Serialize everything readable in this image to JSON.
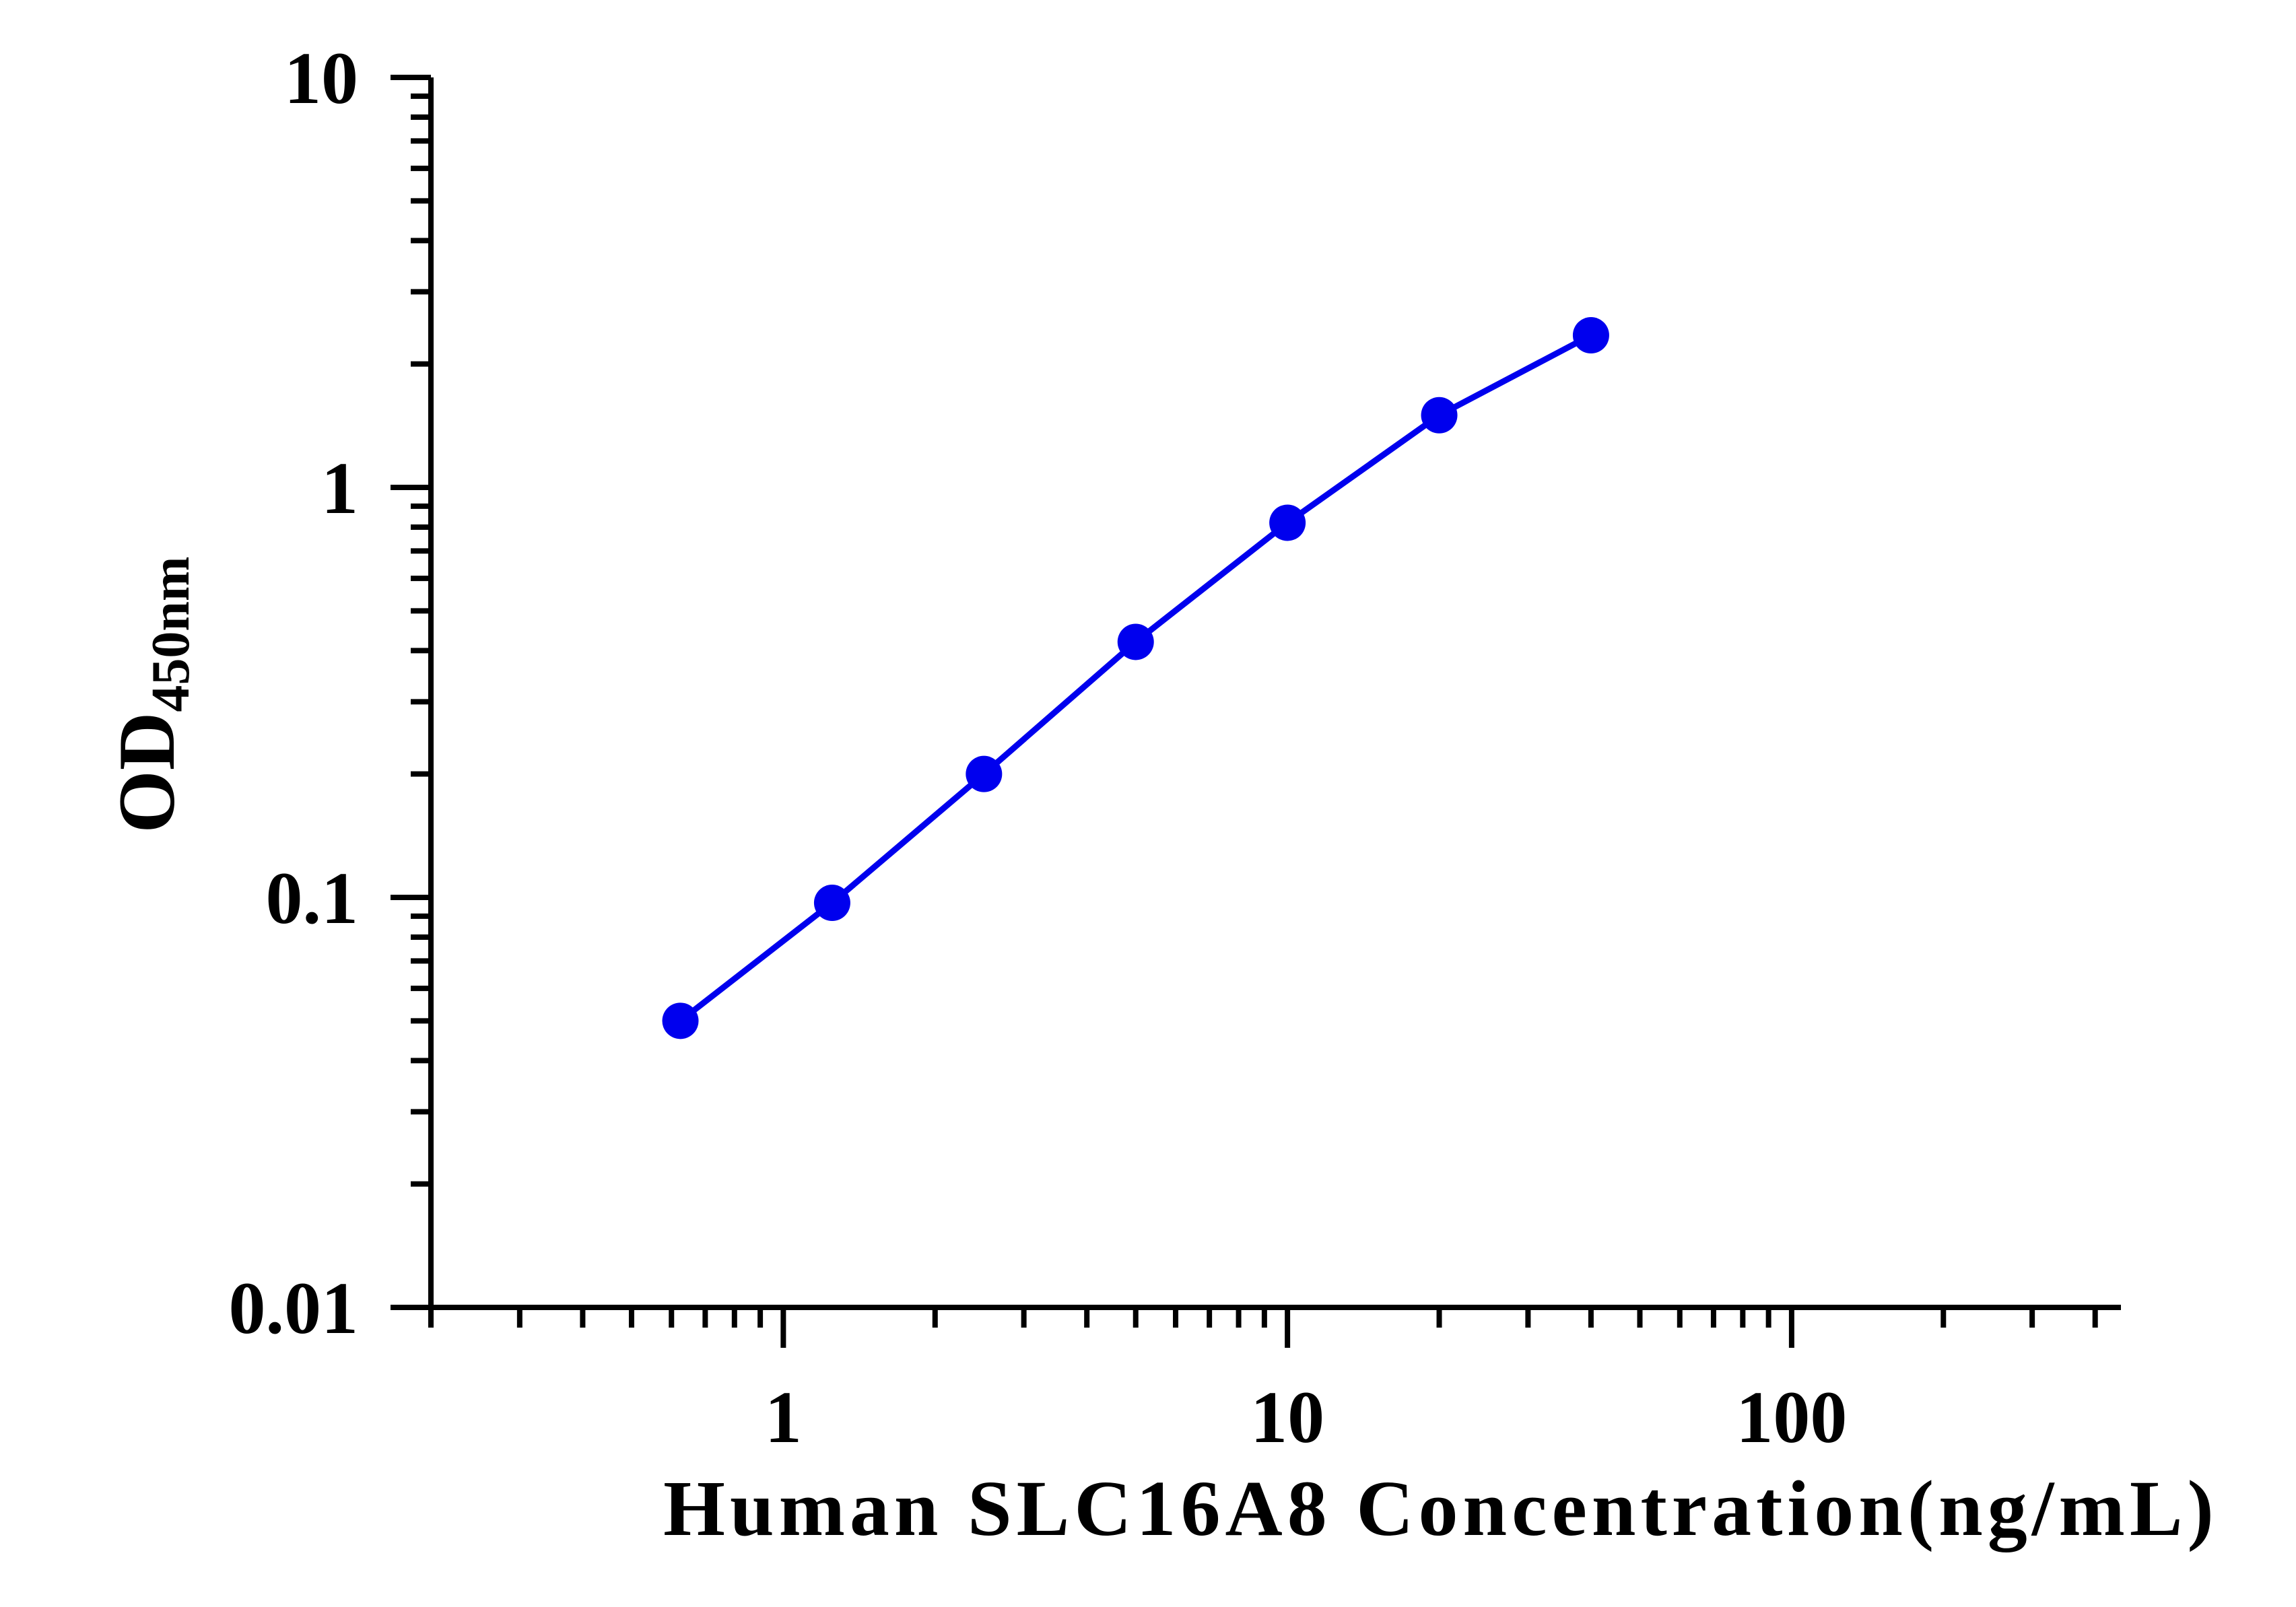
{
  "chart_data": {
    "type": "line",
    "title": "",
    "xlabel": "Human SLC16A8 Concentration(ng/mL)",
    "ylabel": {
      "main": "OD",
      "subscript": "450nm"
    },
    "x_scale": "log",
    "y_scale": "log",
    "xlim": [
      0.2,
      450
    ],
    "ylim": [
      0.01,
      10
    ],
    "x_ticks": [
      1,
      10,
      100
    ],
    "x_tick_labels": [
      "1",
      "10",
      "100"
    ],
    "y_ticks": [
      0.01,
      0.1,
      1,
      10
    ],
    "y_tick_labels": [
      "0.01",
      "0.1",
      "1",
      "10"
    ],
    "grid": false,
    "legend": "none",
    "series": [
      {
        "x": [
          0.625,
          1.25,
          2.5,
          5,
          10,
          20,
          40
        ],
        "y": [
          0.05,
          0.097,
          0.2,
          0.42,
          0.82,
          1.5,
          2.35
        ],
        "color": "#0000ee"
      }
    ]
  }
}
